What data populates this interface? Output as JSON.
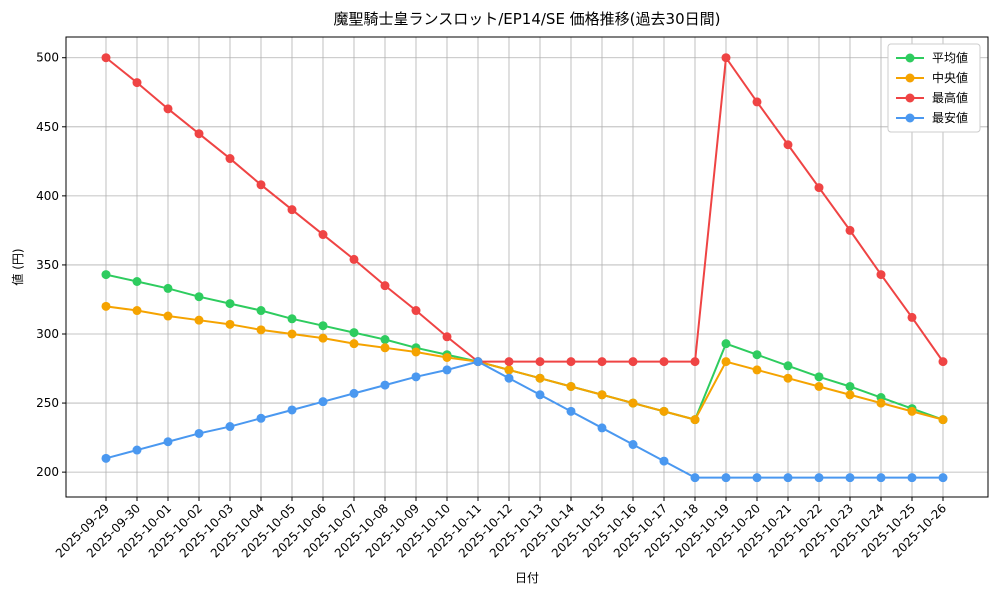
{
  "chart_data": {
    "type": "line",
    "title": "魔聖騎士皇ランスロット/EP14/SE 価格推移(過去30日間)",
    "x_label": "日付",
    "y_label": "値 (円)",
    "categories": [
      "2025-09-29",
      "2025-09-30",
      "2025-10-01",
      "2025-10-02",
      "2025-10-03",
      "2025-10-04",
      "2025-10-05",
      "2025-10-06",
      "2025-10-07",
      "2025-10-08",
      "2025-10-09",
      "2025-10-10",
      "2025-10-11",
      "2025-10-12",
      "2025-10-13",
      "2025-10-14",
      "2025-10-15",
      "2025-10-16",
      "2025-10-17",
      "2025-10-18",
      "2025-10-19",
      "2025-10-20",
      "2025-10-21",
      "2025-10-22",
      "2025-10-23",
      "2025-10-24",
      "2025-10-25",
      "2025-10-26"
    ],
    "series": [
      {
        "name": "平均値",
        "color": "#2ecc5f",
        "values": [
          343,
          338,
          333,
          327,
          322,
          317,
          311,
          306,
          301,
          296,
          290,
          285,
          280,
          274,
          268,
          262,
          256,
          250,
          244,
          238,
          293,
          285,
          277,
          269,
          262,
          254,
          246,
          238
        ]
      },
      {
        "name": "中央値",
        "color": "#f5a300",
        "values": [
          320,
          317,
          313,
          310,
          307,
          303,
          300,
          297,
          293,
          290,
          287,
          283,
          280,
          274,
          268,
          262,
          256,
          250,
          244,
          238,
          280,
          274,
          268,
          262,
          256,
          250,
          244,
          238
        ]
      },
      {
        "name": "最高値",
        "color": "#ef4444",
        "values": [
          500,
          482,
          463,
          445,
          427,
          408,
          390,
          372,
          354,
          335,
          317,
          298,
          280,
          280,
          280,
          280,
          280,
          280,
          280,
          280,
          500,
          468,
          437,
          406,
          375,
          343,
          312,
          280
        ]
      },
      {
        "name": "最安値",
        "color": "#4a98f0",
        "values": [
          210,
          216,
          222,
          228,
          233,
          239,
          245,
          251,
          257,
          263,
          269,
          274,
          280,
          268,
          256,
          244,
          232,
          220,
          208,
          196,
          196,
          196,
          196,
          196,
          196,
          196,
          196,
          196
        ]
      }
    ],
    "ylim": [
      182,
      515
    ],
    "yticks": [
      200,
      250,
      300,
      350,
      400,
      450,
      500
    ],
    "grid": true,
    "legend": "upper right"
  }
}
